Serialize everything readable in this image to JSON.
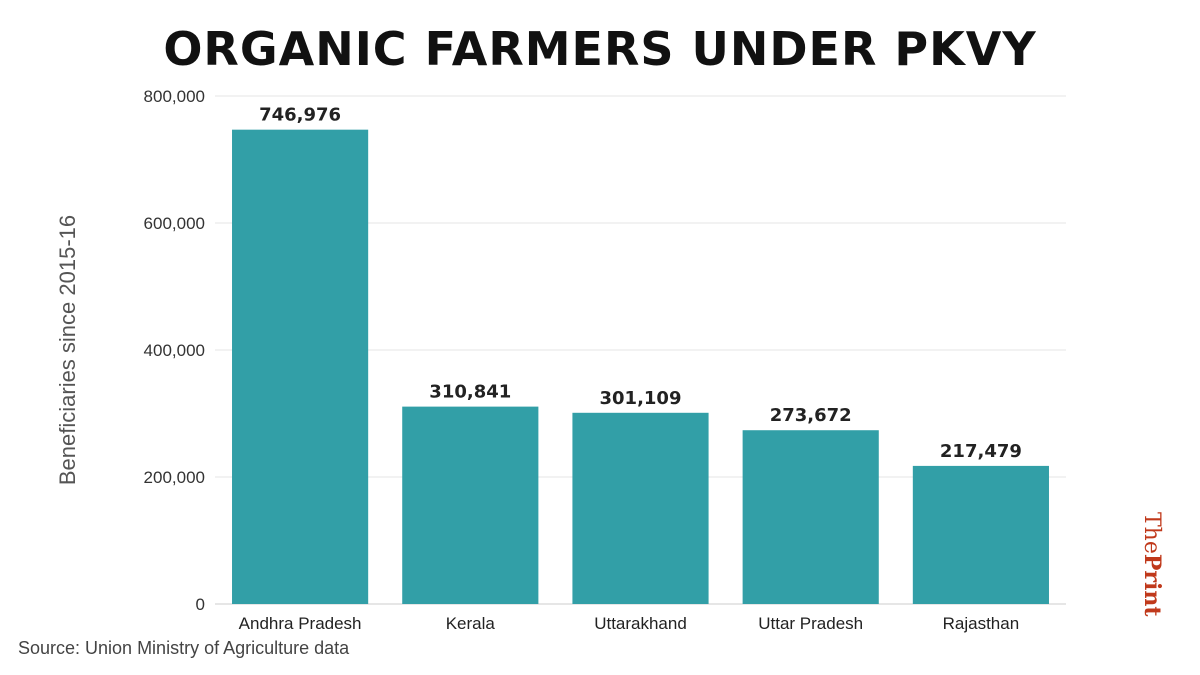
{
  "brand": {
    "part1": "The",
    "part2": "Print"
  },
  "source": "Source: Union Ministry of Agriculture data",
  "chart_data": {
    "type": "bar",
    "title": "ORGANIC FARMERS UNDER PKVY",
    "xlabel": "",
    "ylabel": "Beneficiaries since 2015-16",
    "categories": [
      "Andhra Pradesh",
      "Kerala",
      "Uttarakhand",
      "Uttar Pradesh",
      "Rajasthan"
    ],
    "values": [
      746976,
      310841,
      301109,
      273672,
      217479
    ],
    "data_labels": [
      "746,976",
      "310,841",
      "301,109",
      "273,672",
      "217,479"
    ],
    "ylim": [
      0,
      800000
    ],
    "yticks": [
      0,
      200000,
      400000,
      600000,
      800000
    ],
    "ytick_labels": [
      "0",
      "200,000",
      "400,000",
      "600,000",
      "800,000"
    ],
    "grid": true,
    "bar_color": "#329fa7"
  }
}
